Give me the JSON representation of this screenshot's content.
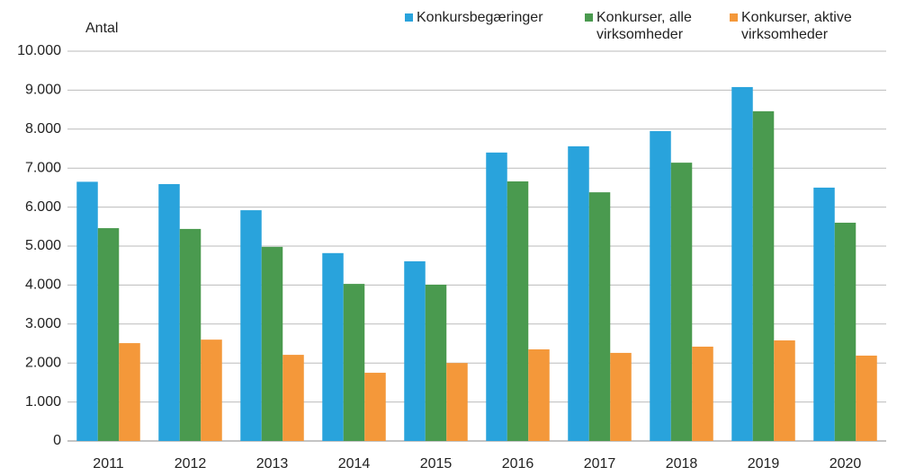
{
  "chart_data": {
    "type": "bar",
    "ylabel": "Antal",
    "categories": [
      "2011",
      "2012",
      "2013",
      "2014",
      "2015",
      "2016",
      "2017",
      "2018",
      "2019",
      "2020"
    ],
    "series": [
      {
        "name": "Konkursbegæringer",
        "color": "#29a3dc",
        "values": [
          6650,
          6590,
          5920,
          4820,
          4610,
          7400,
          7560,
          7950,
          9080,
          6500
        ]
      },
      {
        "name": "Konkurser, alle virksomheder",
        "color": "#4a9a4f",
        "values": [
          5460,
          5440,
          4980,
          4030,
          4010,
          6660,
          6380,
          7140,
          8460,
          5600
        ]
      },
      {
        "name": "Konkurser, aktive virksomheder",
        "color": "#f4983a",
        "values": [
          2510,
          2600,
          2210,
          1750,
          2000,
          2350,
          2260,
          2420,
          2580,
          2190
        ]
      }
    ],
    "ylim": [
      0,
      10000
    ],
    "yticks": [
      0,
      {
        "value": 1000,
        "label": "1.000"
      },
      {
        "value": 2000,
        "label": "2.000"
      },
      {
        "value": 3000,
        "label": "3.000"
      },
      {
        "value": 4000,
        "label": "4.000"
      },
      {
        "value": 5000,
        "label": "5.000"
      },
      {
        "value": 6000,
        "label": "6.000"
      },
      {
        "value": 7000,
        "label": "7.000"
      },
      {
        "value": 8000,
        "label": "8.000"
      },
      {
        "value": 9000,
        "label": "9.000"
      },
      {
        "value": 10000,
        "label": "10.000"
      }
    ],
    "grid": true
  }
}
